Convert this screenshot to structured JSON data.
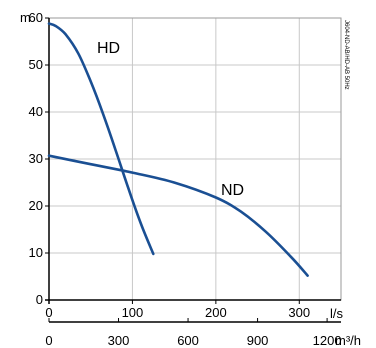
{
  "chart_data": {
    "type": "line",
    "x_unit": "l/s",
    "x_secondary_unit": "m³/h",
    "y_unit": "m",
    "xlim": [
      0,
      350
    ],
    "ylim": [
      0,
      60
    ],
    "x_ticks": [
      0,
      100,
      200,
      300
    ],
    "x_tick_labels": [
      "0",
      "100",
      "200",
      "300"
    ],
    "x_secondary_ticks": [
      0,
      300,
      600,
      900,
      1200
    ],
    "x_secondary_tick_labels": [
      "0",
      "300",
      "600",
      "900",
      "1200"
    ],
    "y_ticks": [
      0,
      10,
      20,
      30,
      40,
      50,
      60
    ],
    "y_tick_labels": [
      "0",
      "10",
      "20",
      "30",
      "40",
      "50",
      "60"
    ],
    "grid": true,
    "side_text": "J604-ND-AB/HD-AB 50Hz",
    "series": [
      {
        "name": "HD",
        "color": "#1a4f93",
        "x": [
          0,
          8,
          20,
          35,
          50,
          65,
          80,
          95,
          110,
          125
        ],
        "y": [
          58.8,
          58.3,
          56.5,
          52.5,
          46.5,
          39.5,
          31.8,
          23.8,
          16.3,
          9.8
        ]
      },
      {
        "name": "ND",
        "color": "#1a4f93",
        "x": [
          0,
          50,
          100,
          150,
          200,
          230,
          260,
          290,
          310
        ],
        "y": [
          30.7,
          28.9,
          27.1,
          25,
          21.8,
          18.8,
          14.5,
          9.2,
          5.2
        ]
      }
    ]
  }
}
